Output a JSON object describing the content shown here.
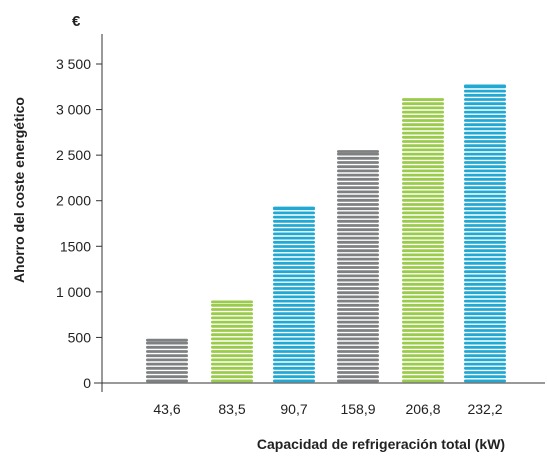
{
  "chart_data": {
    "type": "bar",
    "categories": [
      "43,6",
      "83,5",
      "90,7",
      "158,9",
      "206,8",
      "232,2"
    ],
    "values": [
      470,
      890,
      1920,
      2540,
      3110,
      3260
    ],
    "bar_colors": [
      "#7f8082",
      "#9bcb4a",
      "#22a9d3",
      "#7f8082",
      "#9bcb4a",
      "#22a9d3"
    ],
    "xlabel": "Capacidad de refrigeración total (kW)",
    "ylabel": "Ahorro del coste energético",
    "yunit": "€",
    "ylim": [
      0,
      3800
    ],
    "yticks": [
      0,
      500,
      1000,
      1500,
      2000,
      2500,
      3000,
      3500
    ],
    "ytick_labels": [
      "0",
      "500",
      "1 000",
      "1500",
      "2 000",
      "2 500",
      "3 000",
      "3 500"
    ],
    "grid": false,
    "legend": "none"
  }
}
